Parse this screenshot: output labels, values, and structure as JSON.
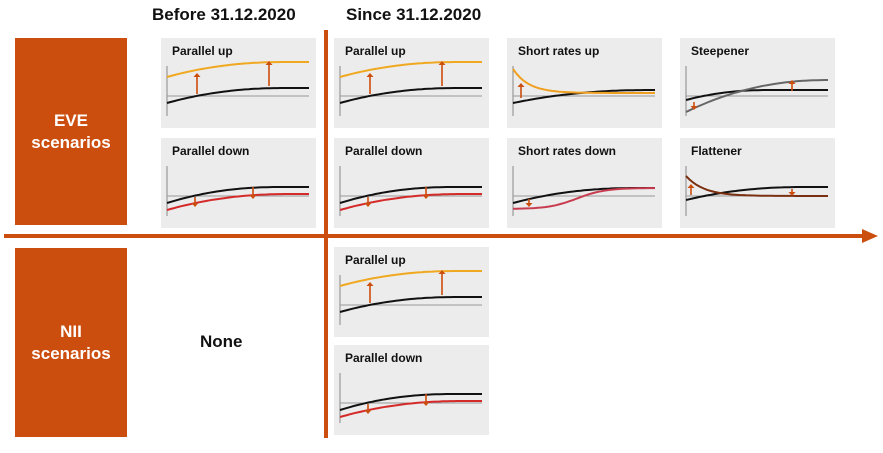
{
  "columns": {
    "before": "Before 31.12.2020",
    "since": "Since 31.12.2020"
  },
  "rows": {
    "eve": [
      "EVE",
      "scenarios"
    ],
    "nii": [
      "NII",
      "scenarios"
    ]
  },
  "none_label": "None",
  "colors": {
    "accent": "#cc4e0e",
    "baseline": "#111111",
    "up": "#f0a820",
    "down": "#d42a2a",
    "short_up": "#f0a020",
    "short_down": "#c83c50",
    "steepener": "#666666",
    "flattener": "#7a3010",
    "panel_bg": "#ececec"
  },
  "panels": {
    "eve_before_up": {
      "title": "Parallel up",
      "shape": "parallel_up"
    },
    "eve_before_down": {
      "title": "Parallel down",
      "shape": "parallel_down"
    },
    "eve_since_up": {
      "title": "Parallel up",
      "shape": "parallel_up"
    },
    "eve_since_down": {
      "title": "Parallel down",
      "shape": "parallel_down"
    },
    "eve_short_up": {
      "title": "Short rates up",
      "shape": "short_up"
    },
    "eve_short_down": {
      "title": "Short rates down",
      "shape": "short_down"
    },
    "eve_steepener": {
      "title": "Steepener",
      "shape": "steepener"
    },
    "eve_flattener": {
      "title": "Flattener",
      "shape": "flattener"
    },
    "nii_since_up": {
      "title": "Parallel up",
      "shape": "parallel_up"
    },
    "nii_since_down": {
      "title": "Parallel down",
      "shape": "parallel_down"
    }
  }
}
